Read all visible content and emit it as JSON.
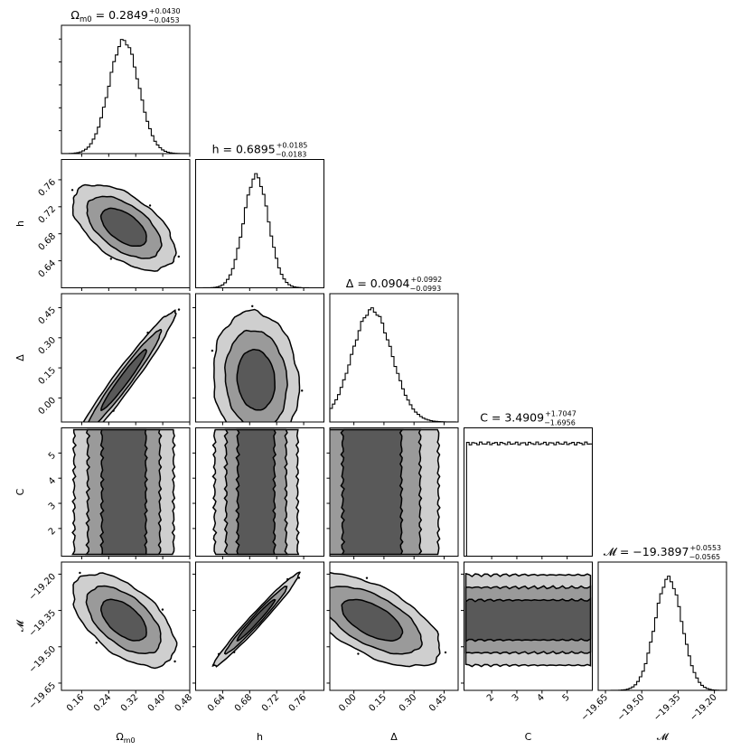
{
  "chart_data": {
    "type": "corner",
    "parameters": [
      {
        "key": "Om",
        "label": "Ωm0",
        "label_sub": "m0",
        "label_main": "Ω",
        "title_main": "Ωm0 = 0.2849",
        "title_prefix": "Ω",
        "title_sub": "m0",
        "title_eq": " = 0.2849",
        "title_plus": "+0.0430",
        "title_minus": "−0.0453",
        "median": 0.2849,
        "err_plus": 0.043,
        "err_minus": 0.0453,
        "range": [
          0.1,
          0.48
        ],
        "ticks": [
          0.16,
          0.24,
          0.32,
          0.4,
          0.48
        ],
        "tick_labels": [
          "0.16",
          "0.24",
          "0.32",
          "0.40",
          "0.48"
        ]
      },
      {
        "key": "h",
        "label": "h",
        "title_prefix": "h",
        "title_sub": "",
        "title_eq": " = 0.6895",
        "title_plus": "+0.0185",
        "title_minus": "−0.0183",
        "median": 0.6895,
        "err_plus": 0.0185,
        "err_minus": 0.0183,
        "range": [
          0.6,
          0.79
        ],
        "ticks": [
          0.64,
          0.68,
          0.72,
          0.76
        ],
        "tick_labels": [
          "0.64",
          "0.68",
          "0.72",
          "0.76"
        ]
      },
      {
        "key": "Delta",
        "label": "Δ",
        "title_prefix": "Δ",
        "title_sub": "",
        "title_eq": " = 0.0904",
        "title_plus": "+0.0992",
        "title_minus": "−0.0993",
        "median": 0.0904,
        "err_plus": 0.0992,
        "err_minus": 0.0993,
        "range": [
          -0.12,
          0.52
        ],
        "ticks": [
          0.0,
          0.15,
          0.3,
          0.45
        ],
        "tick_labels": [
          "0.00",
          "0.15",
          "0.30",
          "0.45"
        ]
      },
      {
        "key": "C",
        "label": "C",
        "title_prefix": "C",
        "title_sub": "",
        "title_eq": " = 3.4909",
        "title_plus": "+1.7047",
        "title_minus": "−1.6956",
        "median": 3.4909,
        "err_plus": 1.7047,
        "err_minus": 1.6956,
        "range": [
          0.9,
          6.0
        ],
        "ticks": [
          2,
          3,
          4,
          5
        ],
        "tick_labels": [
          "2",
          "3",
          "4",
          "5"
        ]
      },
      {
        "key": "M",
        "label": "𝓜",
        "title_prefix": "𝓜",
        "title_sub": "",
        "title_eq": " = −19.3897",
        "title_plus": "+0.0553",
        "title_minus": "−0.0565",
        "median": -19.3897,
        "err_plus": 0.0553,
        "err_minus": 0.0565,
        "range": [
          -19.68,
          -19.15
        ],
        "ticks": [
          -19.65,
          -19.5,
          -19.35,
          -19.2
        ],
        "tick_labels": [
          "−19.65",
          "−19.50",
          "−19.35",
          "−19.20"
        ]
      }
    ],
    "pairs": [
      {
        "x": "Om",
        "y": "h",
        "corr": -0.55
      },
      {
        "x": "Om",
        "y": "Delta",
        "corr": 0.97
      },
      {
        "x": "h",
        "y": "Delta",
        "corr": -0.1
      },
      {
        "x": "Om",
        "y": "C",
        "corr": 0.0
      },
      {
        "x": "h",
        "y": "C",
        "corr": 0.0
      },
      {
        "x": "Delta",
        "y": "C",
        "corr": 0.0
      },
      {
        "x": "Om",
        "y": "M",
        "corr": -0.55
      },
      {
        "x": "h",
        "y": "M",
        "corr": 0.98
      },
      {
        "x": "Delta",
        "y": "M",
        "corr": -0.6
      },
      {
        "x": "C",
        "y": "M",
        "corr": 0.0
      }
    ],
    "contour_levels_sigma": [
      1,
      2,
      3
    ],
    "contour_fills": [
      "#595959",
      "#9a9a9a",
      "#cfcfcf"
    ],
    "grid": false
  }
}
